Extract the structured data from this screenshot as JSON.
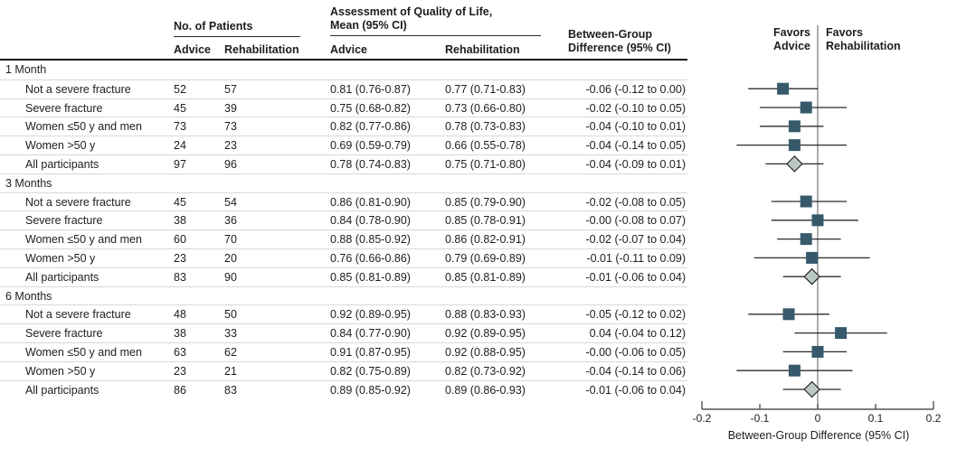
{
  "figure": {
    "header": {
      "patients_group": "No. of Patients",
      "qol_group": "Assessment of Quality of Life,\nMean (95% CI)",
      "advice_n_col": "Advice",
      "rehab_n_col": "Rehabilitation",
      "advice_mean_col": "Advice",
      "rehab_mean_col": "Rehabilitation",
      "diff_col": "Between-Group\nDifference (95% CI)"
    },
    "favors_advice": "Favors\nAdvice",
    "favors_rehabilitation": "Favors\nRehabilitation"
  },
  "colors": {
    "square_marker": "#365a6b",
    "diamond_fill": "#bac8c4",
    "diamond_stroke": "#1a1a1a",
    "ci_line": "#2b2b2b",
    "zero_line": "#8a8a8a",
    "axis": "#555555",
    "row_divider": "#d8d8d8",
    "header_rule": "#1a1a1a"
  },
  "chart_data": {
    "type": "scatter",
    "variant": "forest-plot",
    "xlabel": "Between-Group Difference (95% CI)",
    "xlim": [
      -0.2,
      0.2
    ],
    "xtick_values": [
      -0.2,
      -0.1,
      0,
      0.1,
      0.2
    ],
    "xtick_labels": [
      "-0.2",
      "-0.1",
      "0",
      "0.1",
      "0.2"
    ],
    "zero_reference_line": 0,
    "legend_left": "Favors Advice",
    "legend_right": "Favors Rehabilitation",
    "sections": [
      {
        "label": "1 Month",
        "rows": [
          {
            "label": "Not a severe fracture",
            "advice_n": 52,
            "rehab_n": 57,
            "advice_mean": "0.81 (0.76-0.87)",
            "rehab_mean": "0.77 (0.71-0.83)",
            "diff": "-0.06 (-0.12 to 0.00)",
            "est": -0.06,
            "lo": -0.12,
            "hi": 0.0,
            "marker": "square"
          },
          {
            "label": "Severe fracture",
            "advice_n": 45,
            "rehab_n": 39,
            "advice_mean": "0.75 (0.68-0.82)",
            "rehab_mean": "0.73 (0.66-0.80)",
            "diff": "-0.02 (-0.10 to 0.05)",
            "est": -0.02,
            "lo": -0.1,
            "hi": 0.05,
            "marker": "square"
          },
          {
            "label": "Women ≤50 y and men",
            "advice_n": 73,
            "rehab_n": 73,
            "advice_mean": "0.82 (0.77-0.86)",
            "rehab_mean": "0.78 (0.73-0.83)",
            "diff": "-0.04 (-0.10 to 0.01)",
            "est": -0.04,
            "lo": -0.1,
            "hi": 0.01,
            "marker": "square"
          },
          {
            "label": "Women >50 y",
            "advice_n": 24,
            "rehab_n": 23,
            "advice_mean": "0.69 (0.59-0.79)",
            "rehab_mean": "0.66 (0.55-0.78)",
            "diff": "-0.04 (-0.14 to 0.05)",
            "est": -0.04,
            "lo": -0.14,
            "hi": 0.05,
            "marker": "square"
          },
          {
            "label": "All participants",
            "advice_n": 97,
            "rehab_n": 96,
            "advice_mean": "0.78 (0.74-0.83)",
            "rehab_mean": "0.75 (0.71-0.80)",
            "diff": "-0.04 (-0.09 to 0.01)",
            "est": -0.04,
            "lo": -0.09,
            "hi": 0.01,
            "marker": "diamond"
          }
        ]
      },
      {
        "label": "3 Months",
        "rows": [
          {
            "label": "Not a severe fracture",
            "advice_n": 45,
            "rehab_n": 54,
            "advice_mean": "0.86 (0.81-0.90)",
            "rehab_mean": "0.85 (0.79-0.90)",
            "diff": "-0.02 (-0.08 to 0.05)",
            "est": -0.02,
            "lo": -0.08,
            "hi": 0.05,
            "marker": "square"
          },
          {
            "label": "Severe fracture",
            "advice_n": 38,
            "rehab_n": 36,
            "advice_mean": "0.84 (0.78-0.90)",
            "rehab_mean": "0.85 (0.78-0.91)",
            "diff": "-0.00 (-0.08 to 0.07)",
            "est": -0.0,
            "lo": -0.08,
            "hi": 0.07,
            "marker": "square"
          },
          {
            "label": "Women ≤50 y and men",
            "advice_n": 60,
            "rehab_n": 70,
            "advice_mean": "0.88 (0.85-0.92)",
            "rehab_mean": "0.86 (0.82-0.91)",
            "diff": "-0.02 (-0.07 to 0.04)",
            "est": -0.02,
            "lo": -0.07,
            "hi": 0.04,
            "marker": "square"
          },
          {
            "label": "Women >50 y",
            "advice_n": 23,
            "rehab_n": 20,
            "advice_mean": "0.76 (0.66-0.86)",
            "rehab_mean": "0.79 (0.69-0.89)",
            "diff": "-0.01 (-0.11 to 0.09)",
            "est": -0.01,
            "lo": -0.11,
            "hi": 0.09,
            "marker": "square"
          },
          {
            "label": "All participants",
            "advice_n": 83,
            "rehab_n": 90,
            "advice_mean": "0.85 (0.81-0.89)",
            "rehab_mean": "0.85 (0.81-0.89)",
            "diff": "-0.01 (-0.06 to 0.04)",
            "est": -0.01,
            "lo": -0.06,
            "hi": 0.04,
            "marker": "diamond"
          }
        ]
      },
      {
        "label": "6 Months",
        "rows": [
          {
            "label": "Not a severe fracture",
            "advice_n": 48,
            "rehab_n": 50,
            "advice_mean": "0.92 (0.89-0.95)",
            "rehab_mean": "0.88 (0.83-0.93)",
            "diff": "-0.05 (-0.12 to 0.02)",
            "est": -0.05,
            "lo": -0.12,
            "hi": 0.02,
            "marker": "square"
          },
          {
            "label": "Severe fracture",
            "advice_n": 38,
            "rehab_n": 33,
            "advice_mean": "0.84 (0.77-0.90)",
            "rehab_mean": "0.92 (0.89-0.95)",
            "diff": "0.04 (-0.04 to 0.12)",
            "est": 0.04,
            "lo": -0.04,
            "hi": 0.12,
            "marker": "square"
          },
          {
            "label": "Women ≤50 y and men",
            "advice_n": 63,
            "rehab_n": 62,
            "advice_mean": "0.91 (0.87-0.95)",
            "rehab_mean": "0.92 (0.88-0.95)",
            "diff": "-0.00 (-0.06 to 0.05)",
            "est": -0.0,
            "lo": -0.06,
            "hi": 0.05,
            "marker": "square"
          },
          {
            "label": "Women >50 y",
            "advice_n": 23,
            "rehab_n": 21,
            "advice_mean": "0.82 (0.75-0.89)",
            "rehab_mean": "0.82 (0.73-0.92)",
            "diff": "-0.04 (-0.14 to 0.06)",
            "est": -0.04,
            "lo": -0.14,
            "hi": 0.06,
            "marker": "square"
          },
          {
            "label": "All participants",
            "advice_n": 86,
            "rehab_n": 83,
            "advice_mean": "0.89 (0.85-0.92)",
            "rehab_mean": "0.89 (0.86-0.93)",
            "diff": "-0.01 (-0.06 to 0.04)",
            "est": -0.01,
            "lo": -0.06,
            "hi": 0.04,
            "marker": "diamond"
          }
        ]
      }
    ]
  }
}
